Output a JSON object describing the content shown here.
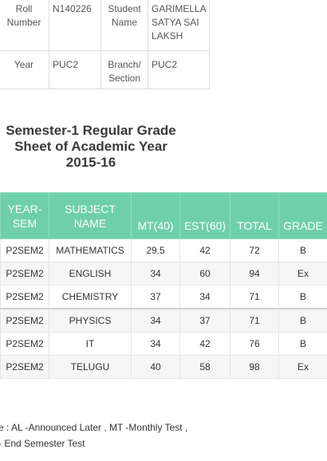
{
  "student_info": {
    "roll_number_label": "Roll Number",
    "roll_number": "N140226",
    "student_name_label": "Student Name",
    "student_name": "GARIMELLA SATYA SAI LAKSH",
    "year_label": "Year",
    "year": "PUC2",
    "branch_label": "Branch/ Section",
    "branch": "PUC2"
  },
  "title": "Semester-1 Regular Grade Sheet of Academic Year 2015-16",
  "grade_table": {
    "headers": [
      "YEAR-SEM",
      "SUBJECT NAME",
      "MT(40)",
      "EST(60)",
      "TOTAL",
      "GRADE"
    ],
    "rows": [
      {
        "year_sem": "P2SEM2",
        "subject": "MATHEMATICS",
        "mt": "29.5",
        "est": "42",
        "total": "72",
        "grade": "B"
      },
      {
        "year_sem": "P2SEM2",
        "subject": "ENGLISH",
        "mt": "34",
        "est": "60",
        "total": "94",
        "grade": "Ex"
      },
      {
        "year_sem": "P2SEM2",
        "subject": "CHEMISTRY",
        "mt": "37",
        "est": "34",
        "total": "71",
        "grade": "B"
      },
      {
        "year_sem": "P2SEM2",
        "subject": "PHYSICS",
        "mt": "34",
        "est": "37",
        "total": "71",
        "grade": "B"
      },
      {
        "year_sem": "P2SEM2",
        "subject": "IT",
        "mt": "34",
        "est": "42",
        "total": "76",
        "grade": "B"
      },
      {
        "year_sem": "P2SEM2",
        "subject": "TELUGU",
        "mt": "40",
        "est": "58",
        "total": "98",
        "grade": "Ex"
      }
    ]
  },
  "legend": {
    "line1": "e : AL -Announced Later , MT -Monthly Test ,",
    "line2": "- End Semester Test"
  },
  "colors": {
    "header_bg": "#6fcfac",
    "header_text": "#ffffff"
  }
}
